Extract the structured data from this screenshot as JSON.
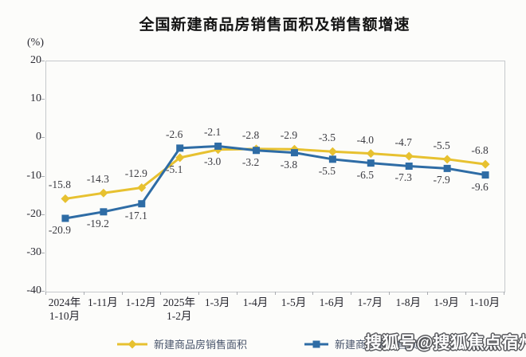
{
  "title": "全国新建商品房销售面积及销售额增速",
  "unit_label": "(%)",
  "watermark": "搜狐号@搜狐焦点宿州站",
  "chart_data": {
    "type": "line",
    "title": "全国新建商品房销售面积及销售额增速",
    "ylabel": "(%)",
    "categories": [
      "2024年\n1-10月",
      "1-11月",
      "1-12月",
      "2025年\n1-2月",
      "1-3月",
      "1-4月",
      "1-5月",
      "1-6月",
      "1-7月",
      "1-8月",
      "1-9月",
      "1-10月"
    ],
    "series": [
      {
        "name": "新建商品房销售面积",
        "marker": "diamond",
        "color": "#E7C130",
        "values": [
          -15.8,
          -14.3,
          -12.9,
          -5.1,
          -3.0,
          -2.8,
          -2.9,
          -3.5,
          -4.0,
          -4.7,
          -5.5,
          -6.8
        ]
      },
      {
        "name": "新建商品房销售额",
        "marker": "square",
        "color": "#2E6CA5",
        "values": [
          -20.9,
          -19.2,
          -17.1,
          -2.6,
          -2.1,
          -3.2,
          -3.8,
          -5.5,
          -6.5,
          -7.3,
          -7.9,
          -9.6
        ]
      }
    ],
    "ylim": [
      -40,
      20
    ],
    "yticks": [
      20,
      10,
      0,
      -10,
      -20,
      -30,
      -40
    ],
    "grid": false,
    "legend_position": "bottom",
    "data_labels": true
  }
}
